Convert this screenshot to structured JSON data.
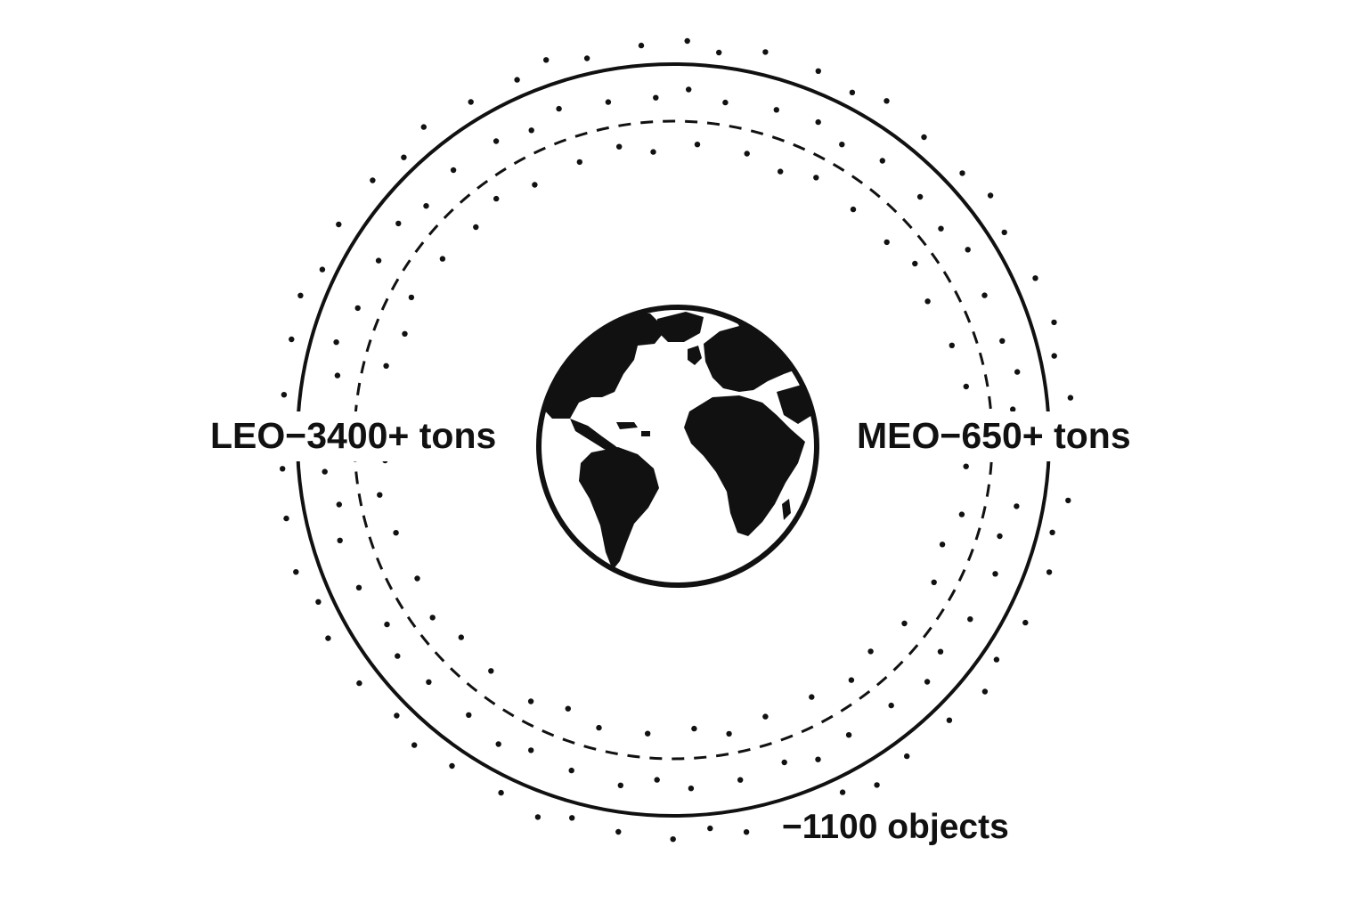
{
  "labels": {
    "leo": "LEO−3400+ tons",
    "meo": "MEO−650+ tons",
    "objects": "−1100 objects"
  },
  "colors": {
    "ink": "#111111",
    "background": "#ffffff"
  },
  "icons": {
    "center": "earth-globe-icon"
  }
}
